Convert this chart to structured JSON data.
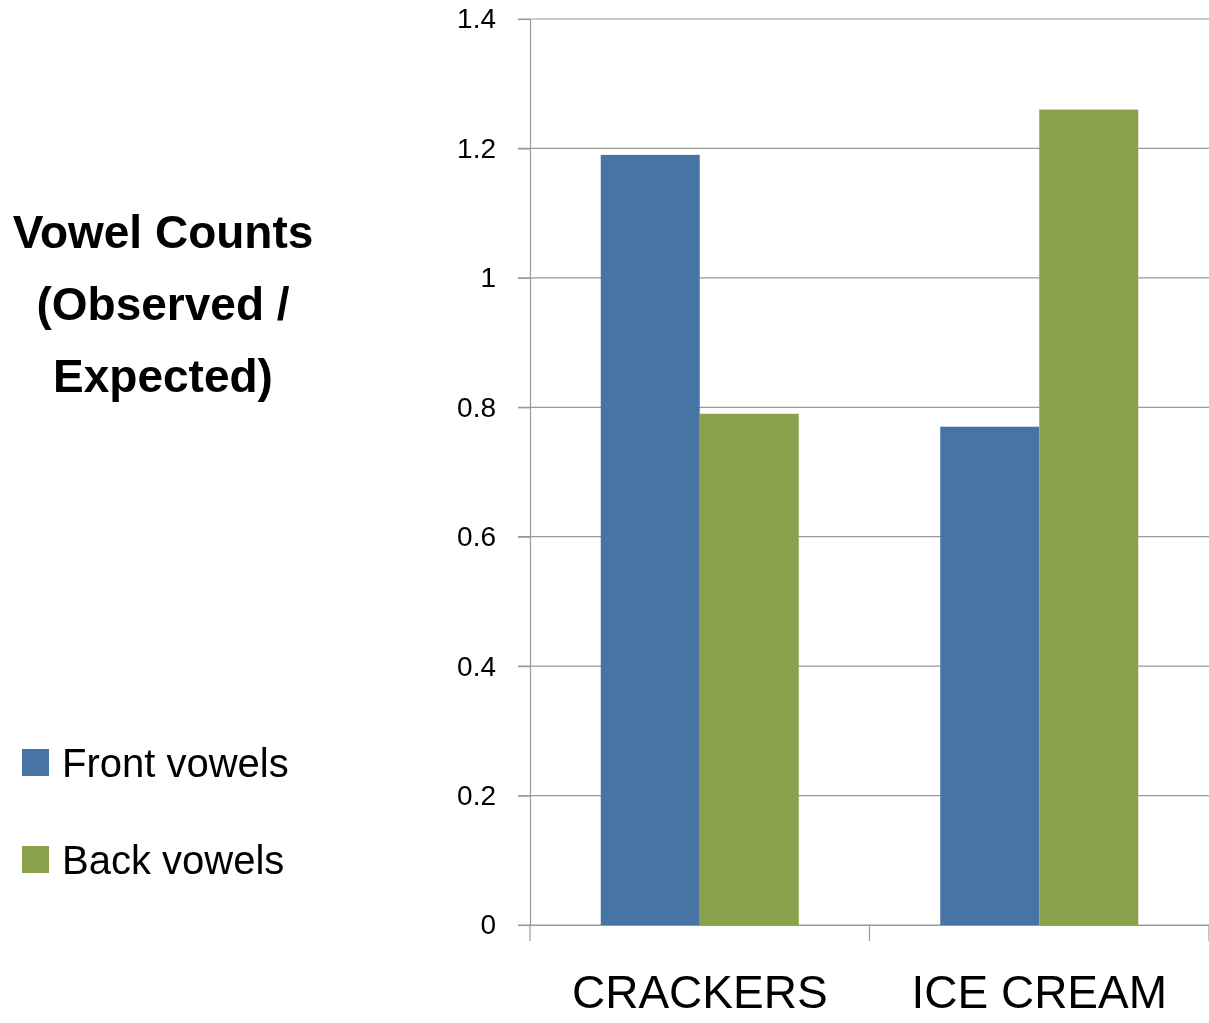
{
  "chart_data": {
    "type": "bar",
    "ylabel": "Vowel Counts (Observed / Expected)",
    "categories": [
      "CRACKERS",
      "ICE CREAM"
    ],
    "series": [
      {
        "name": "Front vowels",
        "color": "#4674a5",
        "values": [
          1.19,
          0.77
        ]
      },
      {
        "name": "Back vowels",
        "color": "#8aa14b",
        "values": [
          0.79,
          1.26
        ]
      }
    ],
    "ylim": [
      0,
      1.4
    ],
    "yticks": [
      0,
      0.2,
      0.4,
      0.6,
      0.8,
      1,
      1.2,
      1.4
    ],
    "grid": "y",
    "legend": "left"
  }
}
